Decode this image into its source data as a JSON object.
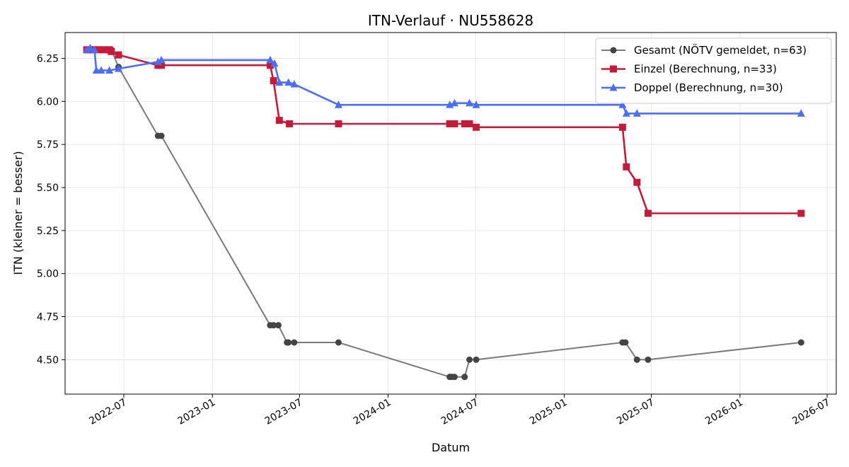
{
  "chart_data": {
    "type": "line",
    "title": "ITN-Verlauf · NU558628",
    "xlabel": "Datum",
    "ylabel": "ITN  (kleiner = besser)",
    "xlim": [
      "2022-03-01",
      "2026-07-20"
    ],
    "ylim": [
      4.3,
      6.4
    ],
    "yticks": [
      4.5,
      4.75,
      5.0,
      5.25,
      5.5,
      5.75,
      6.0,
      6.25
    ],
    "ytick_labels": [
      "4.50",
      "4.75",
      "5.00",
      "5.25",
      "5.50",
      "5.75",
      "6.00",
      "6.25"
    ],
    "xticks": [
      "2022-07-01",
      "2023-01-01",
      "2023-07-01",
      "2024-01-01",
      "2024-07-01",
      "2025-01-01",
      "2025-07-01",
      "2026-01-01",
      "2026-07-01"
    ],
    "xtick_labels": [
      "2022-07",
      "2023-01",
      "2023-07",
      "2024-01",
      "2024-07",
      "2025-01",
      "2025-07",
      "2026-01",
      "2026-07"
    ],
    "grid": true,
    "legend_position": "top-right",
    "series": [
      {
        "name": "Gesamt (NÖTV gemeldet, n=63)",
        "color": "#7a7a7a",
        "marker_color": "#444444",
        "marker": "circle",
        "points": [
          [
            "2022-04-15",
            6.3
          ],
          [
            "2022-04-20",
            6.3
          ],
          [
            "2022-04-25",
            6.3
          ],
          [
            "2022-05-01",
            6.3
          ],
          [
            "2022-05-10",
            6.3
          ],
          [
            "2022-05-20",
            6.3
          ],
          [
            "2022-06-01",
            6.3
          ],
          [
            "2022-06-05",
            6.3
          ],
          [
            "2022-06-20",
            6.2
          ],
          [
            "2022-09-10",
            5.8
          ],
          [
            "2022-09-17",
            5.8
          ],
          [
            "2023-05-01",
            4.7
          ],
          [
            "2023-05-08",
            4.7
          ],
          [
            "2023-05-18",
            4.7
          ],
          [
            "2023-06-05",
            4.6
          ],
          [
            "2023-06-08",
            4.6
          ],
          [
            "2023-06-20",
            4.6
          ],
          [
            "2023-09-20",
            4.6
          ],
          [
            "2024-05-08",
            4.4
          ],
          [
            "2024-05-12",
            4.4
          ],
          [
            "2024-05-18",
            4.4
          ],
          [
            "2024-06-08",
            4.4
          ],
          [
            "2024-06-18",
            4.5
          ],
          [
            "2024-07-02",
            4.5
          ],
          [
            "2025-05-02",
            4.6
          ],
          [
            "2025-05-08",
            4.6
          ],
          [
            "2025-06-01",
            4.5
          ],
          [
            "2025-06-24",
            4.5
          ],
          [
            "2026-05-08",
            4.6
          ]
        ]
      },
      {
        "name": "Einzel (Berechnung, n=33)",
        "color": "#c51b3a",
        "marker_color": "#c51b3a",
        "marker": "square",
        "points": [
          [
            "2022-04-15",
            6.3
          ],
          [
            "2022-04-20",
            6.3
          ],
          [
            "2022-04-28",
            6.3
          ],
          [
            "2022-05-10",
            6.3
          ],
          [
            "2022-05-20",
            6.3
          ],
          [
            "2022-06-01",
            6.3
          ],
          [
            "2022-06-05",
            6.29
          ],
          [
            "2022-06-20",
            6.27
          ],
          [
            "2022-09-10",
            6.21
          ],
          [
            "2022-09-17",
            6.21
          ],
          [
            "2023-05-01",
            6.21
          ],
          [
            "2023-05-08",
            6.12
          ],
          [
            "2023-05-20",
            5.89
          ],
          [
            "2023-06-10",
            5.87
          ],
          [
            "2023-09-20",
            5.87
          ],
          [
            "2024-05-08",
            5.87
          ],
          [
            "2024-05-18",
            5.87
          ],
          [
            "2024-06-08",
            5.87
          ],
          [
            "2024-06-18",
            5.87
          ],
          [
            "2024-07-02",
            5.85
          ],
          [
            "2025-05-02",
            5.85
          ],
          [
            "2025-05-10",
            5.62
          ],
          [
            "2025-06-01",
            5.53
          ],
          [
            "2025-06-24",
            5.35
          ],
          [
            "2026-05-08",
            5.35
          ]
        ]
      },
      {
        "name": "Doppel (Berechnung, n=30)",
        "color": "#4c6ef5",
        "marker_color": "#4c6ef5",
        "marker": "triangle",
        "points": [
          [
            "2022-04-15",
            6.3
          ],
          [
            "2022-04-22",
            6.31
          ],
          [
            "2022-05-01",
            6.3
          ],
          [
            "2022-05-05",
            6.18
          ],
          [
            "2022-05-15",
            6.18
          ],
          [
            "2022-06-01",
            6.18
          ],
          [
            "2022-06-20",
            6.19
          ],
          [
            "2022-09-10",
            6.23
          ],
          [
            "2022-09-17",
            6.24
          ],
          [
            "2023-05-01",
            6.24
          ],
          [
            "2023-05-10",
            6.22
          ],
          [
            "2023-05-20",
            6.11
          ],
          [
            "2023-06-08",
            6.11
          ],
          [
            "2023-06-20",
            6.1
          ],
          [
            "2023-09-20",
            5.98
          ],
          [
            "2024-05-08",
            5.98
          ],
          [
            "2024-05-18",
            5.99
          ],
          [
            "2024-06-18",
            5.99
          ],
          [
            "2024-07-02",
            5.98
          ],
          [
            "2025-05-02",
            5.98
          ],
          [
            "2025-05-10",
            5.93
          ],
          [
            "2025-06-01",
            5.93
          ],
          [
            "2026-05-08",
            5.93
          ]
        ]
      }
    ]
  }
}
